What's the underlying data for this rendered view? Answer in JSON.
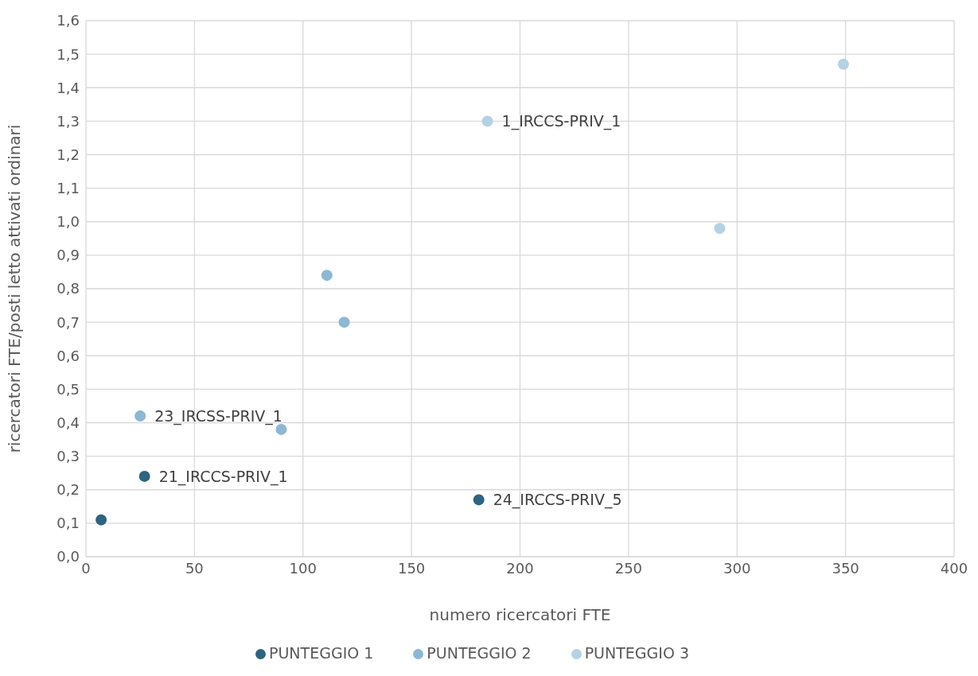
{
  "chart_data": {
    "type": "scatter",
    "xlabel": "numero ricercatori FTE",
    "ylabel": "ricercatori FTE/posti letto attivati ordinari",
    "xlim": [
      0,
      400
    ],
    "xticks": [
      0,
      50,
      100,
      150,
      200,
      250,
      300,
      350,
      400
    ],
    "ylim": [
      0,
      1.6
    ],
    "yticks": [
      {
        "value": 0,
        "label": "0,0"
      },
      {
        "value": 0.1,
        "label": "0,1"
      },
      {
        "value": 0.2,
        "label": "0,2"
      },
      {
        "value": 0.3,
        "label": "0,3"
      },
      {
        "value": 0.4,
        "label": "0,4"
      },
      {
        "value": 0.5,
        "label": "0,5"
      },
      {
        "value": 0.6,
        "label": "0,6"
      },
      {
        "value": 0.7,
        "label": "0,7"
      },
      {
        "value": 0.8,
        "label": "0,8"
      },
      {
        "value": 0.9,
        "label": "0,9"
      },
      {
        "value": 1.0,
        "label": "1,0"
      },
      {
        "value": 1.1,
        "label": "1,1"
      },
      {
        "value": 1.2,
        "label": "1,2"
      },
      {
        "value": 1.3,
        "label": "1,3"
      },
      {
        "value": 1.4,
        "label": "1,4"
      },
      {
        "value": 1.5,
        "label": "1,5"
      },
      {
        "value": 1.6,
        "label": "1,6"
      }
    ],
    "series": [
      {
        "name": "PUNTEGGIO 1",
        "color": "#2e6480",
        "x": [
          7,
          27,
          181
        ],
        "values": [
          0.11,
          0.24,
          0.17
        ]
      },
      {
        "name": "PUNTEGGIO 2",
        "color": "#8cb8d4",
        "x": [
          25,
          90,
          111,
          119
        ],
        "values": [
          0.42,
          0.38,
          0.84,
          0.7
        ]
      },
      {
        "name": "PUNTEGGIO 3",
        "color": "#b4d2e4",
        "x": [
          185,
          292,
          349
        ],
        "values": [
          1.3,
          0.98,
          1.47
        ]
      }
    ],
    "annotations": [
      {
        "text": "1_IRCCS-PRIV_1",
        "x": 185,
        "y": 1.3
      },
      {
        "text": "23_IRCSS-PRIV_1",
        "x": 25,
        "y": 0.42
      },
      {
        "text": "21_IRCCS-PRIV_1",
        "x": 27,
        "y": 0.24
      },
      {
        "text": "24_IRCCS-PRIV_5",
        "x": 181,
        "y": 0.17
      }
    ],
    "grid": true,
    "legend": "bottom",
    "marker": "circle"
  }
}
